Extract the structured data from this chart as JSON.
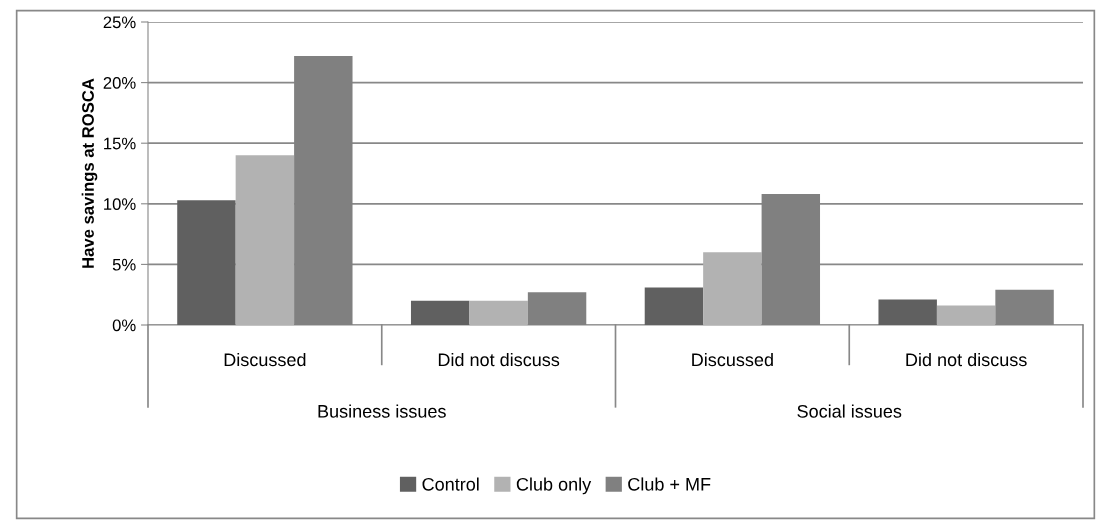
{
  "chart_data": {
    "type": "bar",
    "ylabel": "Have savings at ROSCA",
    "categories": [
      "Discussed",
      "Did not discuss",
      "Discussed",
      "Did not discuss"
    ],
    "annotations": [
      "Business issues",
      "Social issues"
    ],
    "series": [
      {
        "name": "Control",
        "color": "#606060",
        "values": [
          10.3,
          2.0,
          3.1,
          2.1
        ]
      },
      {
        "name": "Club only",
        "color": "#b2b2b2",
        "values": [
          14.0,
          2.0,
          6.0,
          1.6
        ]
      },
      {
        "name": "Club + MF",
        "color": "#808080",
        "values": [
          22.2,
          2.7,
          10.8,
          2.9
        ]
      }
    ],
    "ylim": [
      0,
      25
    ],
    "yticks": [
      {
        "value": 0,
        "label": "0%"
      },
      {
        "value": 5,
        "label": "5%"
      },
      {
        "value": 10,
        "label": "10%"
      },
      {
        "value": 15,
        "label": "15%"
      },
      {
        "value": 20,
        "label": "20%"
      },
      {
        "value": 25,
        "label": "25%"
      }
    ],
    "grid": "y",
    "legend": "bottom"
  }
}
